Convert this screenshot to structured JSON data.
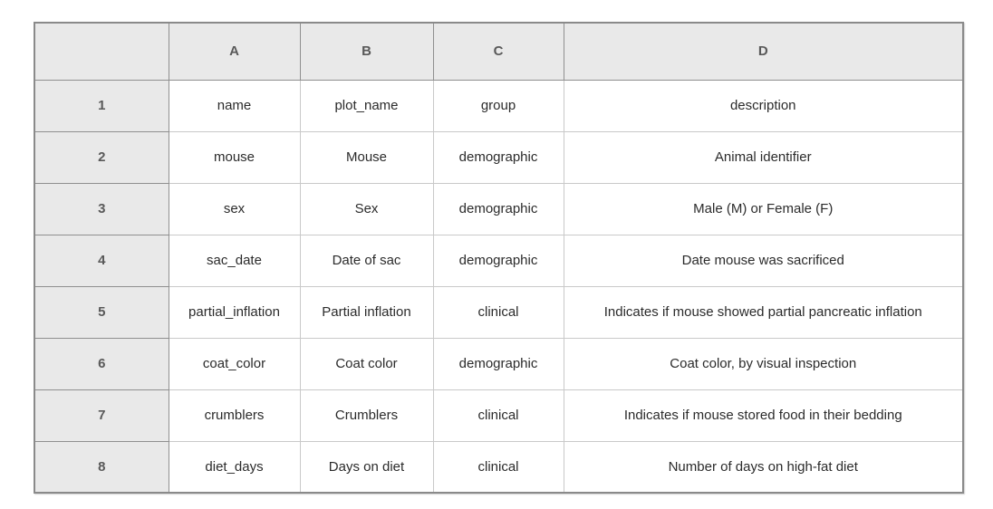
{
  "spreadsheet": {
    "column_headers": [
      "A",
      "B",
      "C",
      "D"
    ],
    "row_headers": [
      "1",
      "2",
      "3",
      "4",
      "5",
      "6",
      "7",
      "8"
    ],
    "rows": [
      [
        "name",
        "plot_name",
        "group",
        "description"
      ],
      [
        "mouse",
        "Mouse",
        "demographic",
        "Animal identifier"
      ],
      [
        "sex",
        "Sex",
        "demographic",
        "Male (M) or Female (F)"
      ],
      [
        "sac_date",
        "Date of sac",
        "demographic",
        "Date mouse was sacrificed"
      ],
      [
        "partial_inflation",
        "Partial inflation",
        "clinical",
        "Indicates if mouse showed partial pancreatic inflation"
      ],
      [
        "coat_color",
        "Coat color",
        "demographic",
        "Coat color, by visual inspection"
      ],
      [
        "crumblers",
        "Crumblers",
        "clinical",
        "Indicates if mouse stored food in their bedding"
      ],
      [
        "diet_days",
        "Days on diet",
        "clinical",
        "Number of days on high-fat diet"
      ]
    ],
    "colors": {
      "header_bg": "#e9e9e9",
      "header_text": "#595959",
      "cell_text": "#2b2b2b",
      "outer_border": "#8a8a8a",
      "header_border": "#8f8f8f",
      "inner_border": "#c9c9c9",
      "page_bg": "#ffffff"
    }
  }
}
